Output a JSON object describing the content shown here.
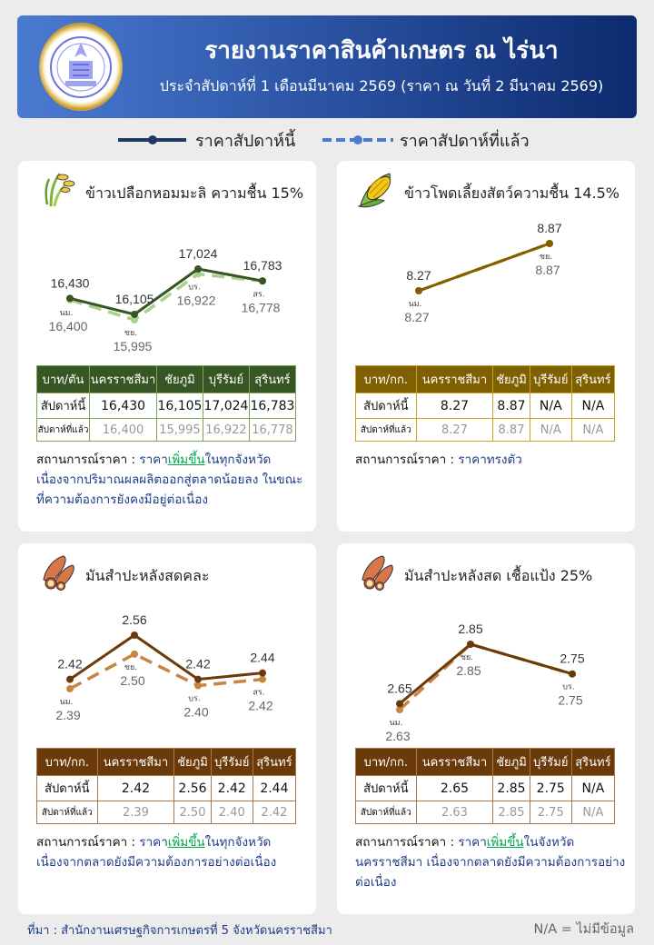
{
  "header": {
    "title": "รายงานราคาสินค้าเกษตร ณ ไร่นา",
    "subtitle": "ประจำสัปดาห์ที่ 1 เดือนมีนาคม 2569 (ราคา ณ วันที่ 2 มีนาคม 2569)",
    "logo_text": "สำนักงานเศรษฐกิจการเกษตร",
    "colors": {
      "start": "#4a7bd0",
      "end": "#0d2a6e"
    }
  },
  "legend": {
    "this_week": "ราคาสัปดาห์นี้",
    "last_week": "ราคาสัปดาห์ที่แล้ว",
    "this_color": "#1f3864",
    "last_color": "#4a7bd0"
  },
  "status_label": "สถานการณ์ราคา : ",
  "table_row_labels": {
    "this_week": "สัปดาห์นี้",
    "last_week": "สัปดาห์ที่แล้ว"
  },
  "cards": [
    {
      "title": "ข้าวเปลือกหอมมะลิ ความชื้น 15%",
      "icon": "rice-icon",
      "colors": {
        "this": "#375623",
        "last": "#a9d18e",
        "header": "#375623",
        "border": "#7aa55a"
      },
      "table": {
        "headers": [
          "บาท/ตัน",
          "นครราชสีมา",
          "ชัยภูมิ",
          "บุรีรัมย์",
          "สุรินทร์"
        ],
        "this_week": [
          "16,430",
          "16,105",
          "17,024",
          "16,783"
        ],
        "last_week": [
          "16,400",
          "15,995",
          "16,922",
          "16,778"
        ]
      },
      "status": {
        "pre": "ราคา",
        "trend": "เพิ่มขึ้น",
        "post": "ในทุกจังหวัด เนื่องจากปริมาณผลผลิตออกสู่ตลาดน้อยลง ในขณะที่ความต้องการยังคงมีอยู่ต่อเนื่อง"
      }
    },
    {
      "title": "ข้าวโพดเลี้ยงสัตว์ความชื้น 14.5%",
      "icon": "corn-icon",
      "colors": {
        "this": "#7f6000",
        "last": "#c9a227",
        "header": "#7f6000",
        "border": "#c9a227"
      },
      "table": {
        "headers": [
          "บาท/กก.",
          "นครราชสีมา",
          "ชัยภูมิ",
          "บุรีรัมย์",
          "สุรินทร์"
        ],
        "this_week": [
          "8.27",
          "8.87",
          "N/A",
          "N/A"
        ],
        "last_week": [
          "8.27",
          "8.87",
          "N/A",
          "N/A"
        ]
      },
      "status": {
        "pre": "ราคาทรงตัว",
        "trend": "",
        "post": ""
      }
    },
    {
      "title": "มันสำปะหลังสดคละ",
      "icon": "cassava-icon",
      "colors": {
        "this": "#6b3a0a",
        "last": "#c68642",
        "header": "#6b3a0a",
        "border": "#a9784a"
      },
      "table": {
        "headers": [
          "บาท/กก.",
          "นครราชสีมา",
          "ชัยภูมิ",
          "บุรีรัมย์",
          "สุรินทร์"
        ],
        "this_week": [
          "2.42",
          "2.56",
          "2.42",
          "2.44"
        ],
        "last_week": [
          "2.39",
          "2.50",
          "2.40",
          "2.42"
        ]
      },
      "status": {
        "pre": "ราคา",
        "trend": "เพิ่มขึ้น",
        "post": "ในทุกจังหวัด เนื่องจากตลาดยังมีความต้องการอย่างต่อเนื่อง"
      }
    },
    {
      "title": "มันสำปะหลังสด เชื้อแป้ง 25%",
      "icon": "cassava-icon",
      "colors": {
        "this": "#6b3a0a",
        "last": "#c68642",
        "header": "#6b3a0a",
        "border": "#a9784a"
      },
      "table": {
        "headers": [
          "บาท/กก.",
          "นครราชสีมา",
          "ชัยภูมิ",
          "บุรีรัมย์",
          "สุรินทร์"
        ],
        "this_week": [
          "2.65",
          "2.85",
          "2.75",
          "N/A"
        ],
        "last_week": [
          "2.63",
          "2.85",
          "2.75",
          "N/A"
        ]
      },
      "status": {
        "pre": "ราคา",
        "trend": "เพิ่มขึ้น",
        "post": "ในจังหวัดนครราชสีมา เนื่องจากตลาดยังมีความต้องการอย่างต่อเนื่อง"
      }
    }
  ],
  "chart_data": [
    {
      "type": "line",
      "title": "ข้าวเปลือกหอมมะลิ ความชื้น 15%",
      "categories": [
        "นม.",
        "ชย.",
        "บร.",
        "สร."
      ],
      "series": [
        {
          "name": "ราคาสัปดาห์นี้",
          "values": [
            16430,
            16105,
            17024,
            16783
          ]
        },
        {
          "name": "ราคาสัปดาห์ที่แล้ว",
          "values": [
            16400,
            15995,
            16922,
            16778
          ]
        }
      ],
      "grid": false
    },
    {
      "type": "line",
      "title": "ข้าวโพดเลี้ยงสัตว์ความชื้น 14.5%",
      "categories": [
        "นม.",
        "ชย."
      ],
      "series": [
        {
          "name": "ราคาสัปดาห์นี้",
          "values": [
            8.27,
            8.87
          ]
        },
        {
          "name": "ราคาสัปดาห์ที่แล้ว",
          "values": [
            8.27,
            8.87
          ]
        }
      ],
      "grid": false
    },
    {
      "type": "line",
      "title": "มันสำปะหลังสดคละ",
      "categories": [
        "นม.",
        "ชย.",
        "บร.",
        "สร."
      ],
      "series": [
        {
          "name": "ราคาสัปดาห์นี้",
          "values": [
            2.42,
            2.56,
            2.42,
            2.44
          ]
        },
        {
          "name": "ราคาสัปดาห์ที่แล้ว",
          "values": [
            2.39,
            2.5,
            2.4,
            2.42
          ]
        }
      ],
      "grid": false
    },
    {
      "type": "line",
      "title": "มันสำปะหลังสด เชื้อแป้ง 25%",
      "categories": [
        "นม.",
        "ชย.",
        "บร."
      ],
      "series": [
        {
          "name": "ราคาสัปดาห์นี้",
          "values": [
            2.65,
            2.85,
            2.75
          ]
        },
        {
          "name": "ราคาสัปดาห์ที่แล้ว",
          "values": [
            2.63,
            2.85,
            2.75
          ]
        }
      ],
      "grid": false
    }
  ],
  "footer": {
    "source": "ที่มา : สำนักงานเศรษฐกิจการเกษตรที่ 5 จังหวัดนครราชสีมา",
    "na_note": "N/A = ไม่มีข้อมูล"
  }
}
